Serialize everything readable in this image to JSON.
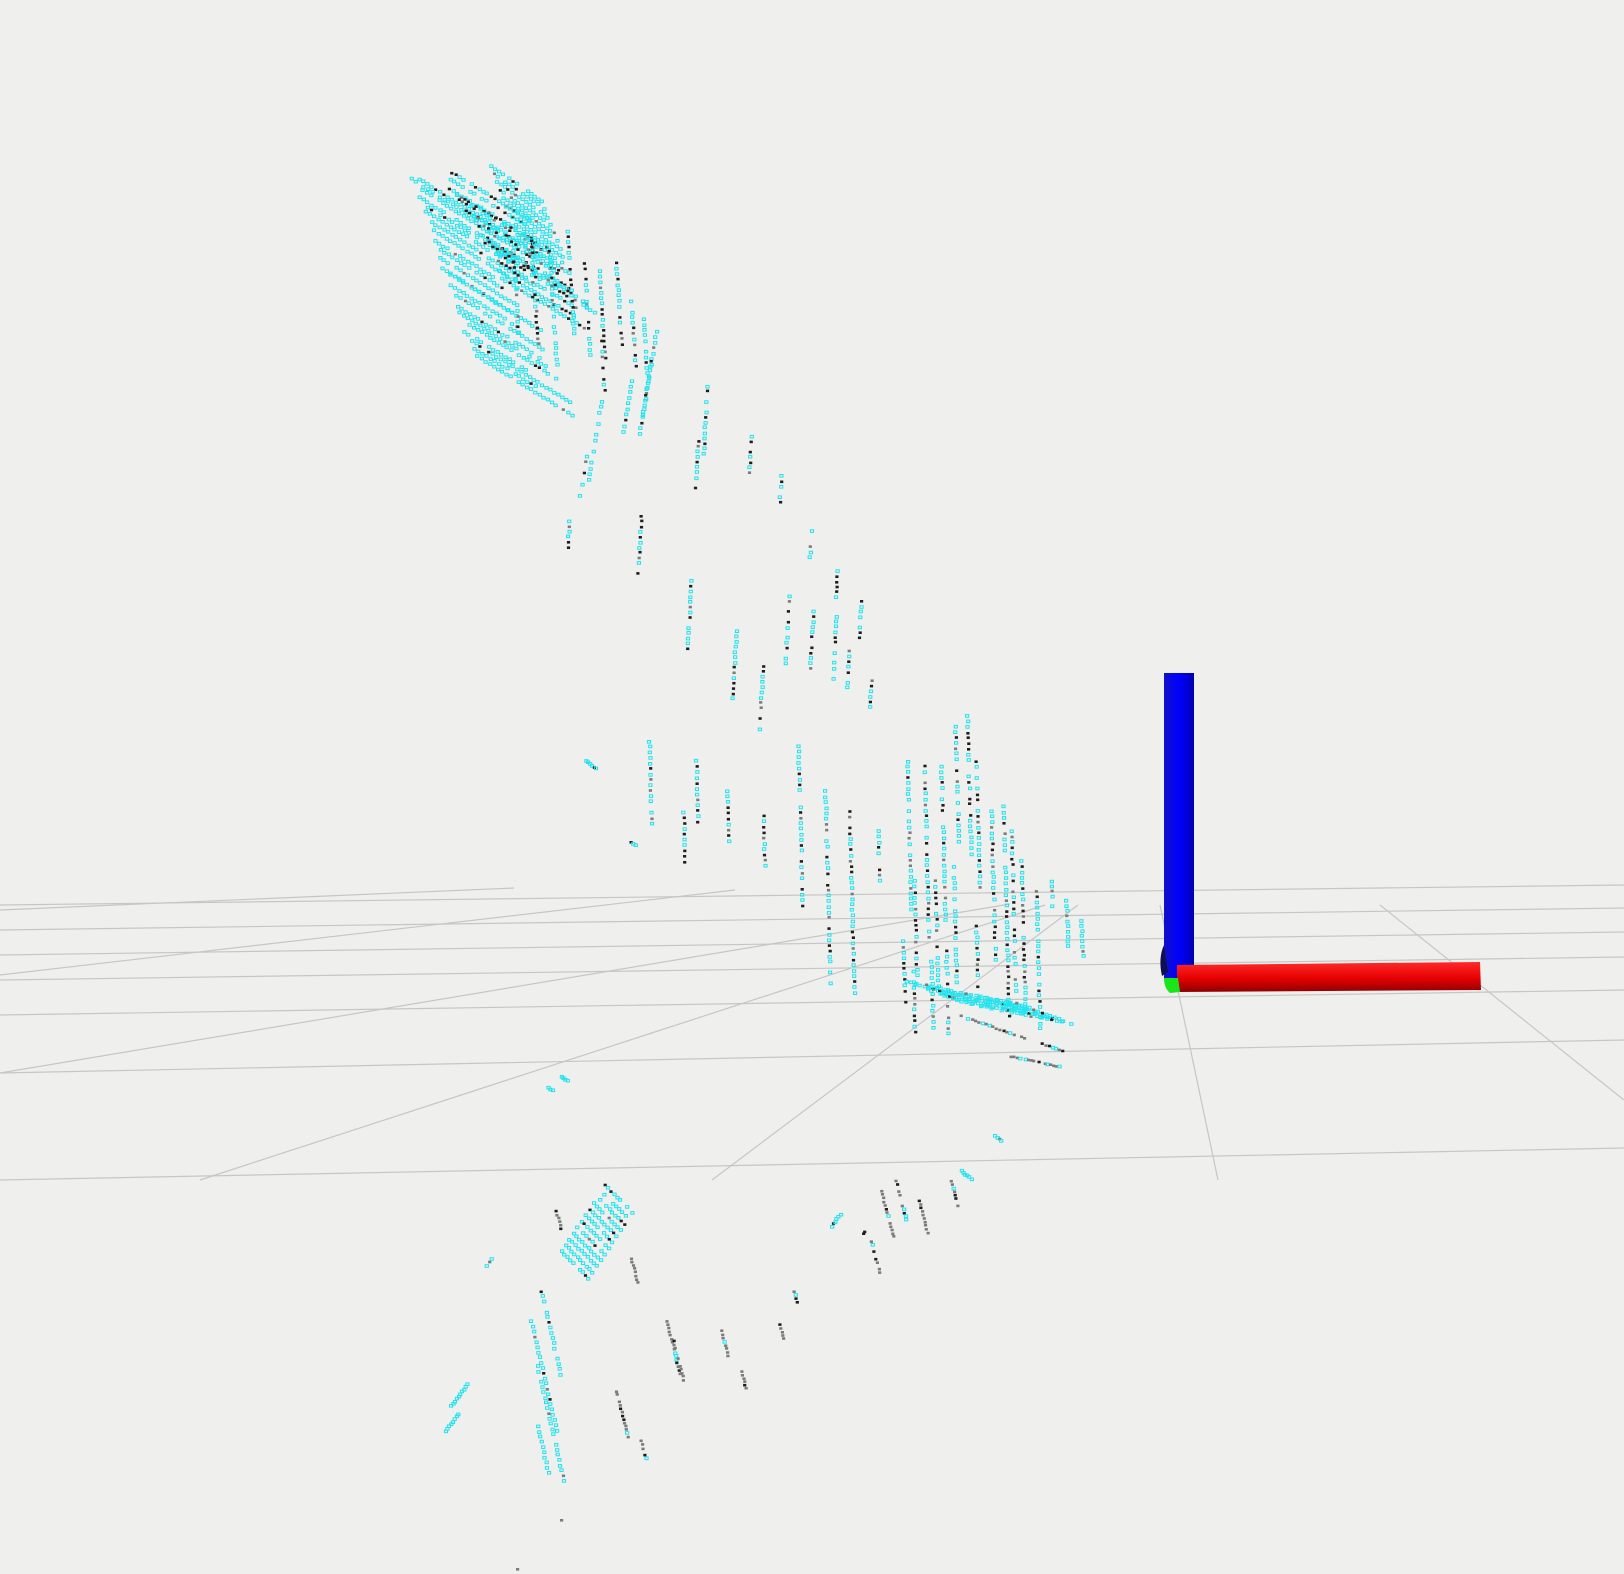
{
  "scene": {
    "background_color": "#efefee",
    "grid_color": "#c6c6c6",
    "colors": {
      "cyan_points": "#1ee3ee",
      "dark_points": "#1e1e1e",
      "gray_points": "#7c7c7c",
      "light_points": "#ffffff",
      "axis_x": "#ff0000",
      "axis_y": "#00ff00",
      "axis_z": "#0000ff"
    },
    "axes_marker": {
      "name": "coordinate-frame",
      "icons": [
        "x-axis-icon",
        "y-axis-icon",
        "z-axis-icon"
      ]
    }
  }
}
